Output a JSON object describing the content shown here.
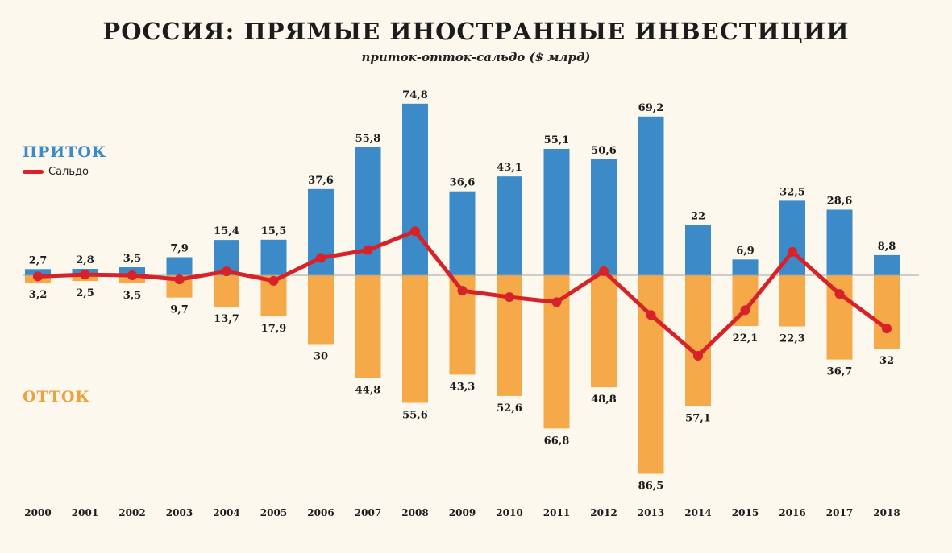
{
  "title": "РОССИЯ: ПРЯМЫЕ ИНОСТРАННЫЕ ИНВЕСТИЦИИ",
  "subtitle": "приток-отток-сальдо ($ млрд)",
  "legend": {
    "inflow": "ПРИТОК",
    "balance": "Сальдо",
    "outflow": "ОТТОК"
  },
  "colors": {
    "inflow": "#3d8ac9",
    "outflow": "#f5a948",
    "balance": "#d7222a",
    "background": "#fcf8ee"
  },
  "chart_data": {
    "type": "bar",
    "title": "РОССИЯ: ПРЯМЫЕ ИНОСТРАННЫЕ ИНВЕСТИЦИИ",
    "subtitle": "приток-отток-сальдо ($ млрд)",
    "categories": [
      "2000",
      "2001",
      "2002",
      "2003",
      "2004",
      "2005",
      "2006",
      "2007",
      "2008",
      "2009",
      "2010",
      "2011",
      "2012",
      "2013",
      "2014",
      "2015",
      "2016",
      "2017",
      "2018"
    ],
    "series": [
      {
        "name": "ПРИТОК",
        "values": [
          2.7,
          2.8,
          3.5,
          7.9,
          15.4,
          15.5,
          37.6,
          55.8,
          74.8,
          36.6,
          43.1,
          55.1,
          50.6,
          69.2,
          22,
          6.9,
          32.5,
          28.6,
          8.8
        ],
        "labels": [
          "2,7",
          "2,8",
          "3,5",
          "7,9",
          "15,4",
          "15,5",
          "37,6",
          "55,8",
          "74,8",
          "36,6",
          "43,1",
          "55,1",
          "50,6",
          "69,2",
          "22",
          "6,9",
          "32,5",
          "28,6",
          "8,8"
        ]
      },
      {
        "name": "ОТТОК",
        "values": [
          3.2,
          2.5,
          3.5,
          9.7,
          13.7,
          17.9,
          30,
          44.8,
          55.6,
          43.3,
          52.6,
          66.8,
          48.8,
          86.5,
          57.1,
          22.1,
          22.3,
          36.7,
          32
        ],
        "labels": [
          "3,2",
          "2,5",
          "3,5",
          "9,7",
          "13,7",
          "17,9",
          "30",
          "44,8",
          "55,6",
          "43,3",
          "52,6",
          "66,8",
          "48,8",
          "86,5",
          "57,1",
          "22,1",
          "22,3",
          "36,7",
          "32"
        ]
      },
      {
        "name": "Сальдо",
        "type": "line",
        "values": [
          -0.5,
          0.3,
          0,
          -1.8,
          1.7,
          -2.4,
          7.6,
          11,
          19.2,
          -6.7,
          -9.5,
          -11.7,
          1.8,
          -17.3,
          -35.1,
          -15.2,
          10.2,
          -8.1,
          -23.2
        ]
      }
    ],
    "ylim": [
      -90,
      80
    ],
    "grid": false,
    "legend": "left"
  }
}
